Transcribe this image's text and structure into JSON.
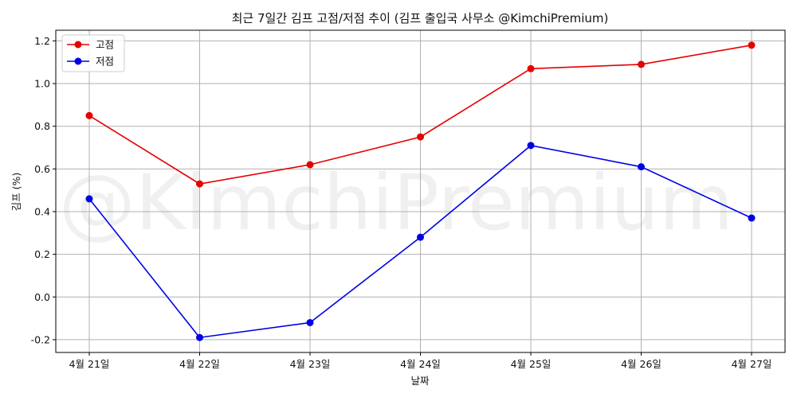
{
  "chart_data": {
    "type": "line",
    "title": "최근 7일간 김프 고점/저점 추이 (김프 출입국 사무소 @KimchiPremium)",
    "xlabel": "날짜",
    "ylabel": "김프 (%)",
    "watermark": "@KimchiPremium",
    "categories": [
      "4월 21일",
      "4월 22일",
      "4월 23일",
      "4월 24일",
      "4월 25일",
      "4월 26일",
      "4월 27일"
    ],
    "series": [
      {
        "name": "고점",
        "color": "#e60000",
        "values": [
          0.85,
          0.53,
          0.62,
          0.75,
          1.07,
          1.09,
          1.18
        ]
      },
      {
        "name": "저점",
        "color": "#0000e6",
        "values": [
          0.46,
          -0.19,
          -0.12,
          0.28,
          0.71,
          0.61,
          0.37
        ]
      }
    ],
    "ylim": [
      -0.26,
      1.25
    ],
    "yticks": [
      -0.2,
      0.0,
      0.2,
      0.4,
      0.6,
      0.8,
      1.0,
      1.2
    ],
    "ytick_labels": [
      "-0.2",
      "0.0",
      "0.2",
      "0.4",
      "0.6",
      "0.8",
      "1.0",
      "1.2"
    ],
    "grid": true,
    "legend_position": "top-left"
  }
}
